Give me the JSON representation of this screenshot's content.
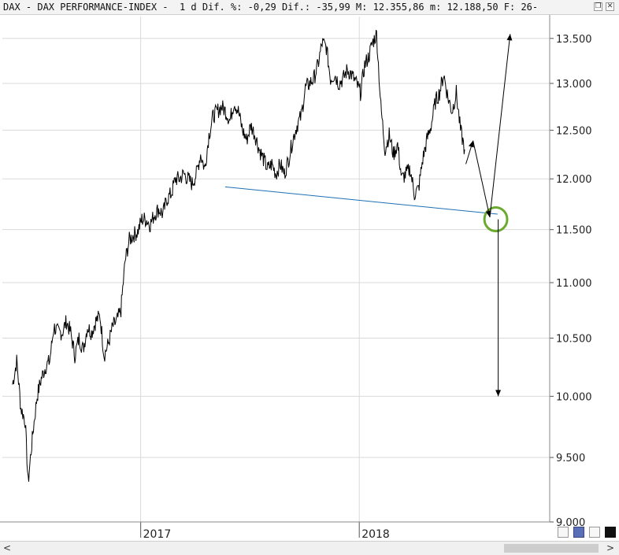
{
  "window": {
    "title": "DAX - DAX PERFORMANCE-INDEX -  1 d Dif. %: -0,29 Dif.: -35,99 M: 12.355,86 m: 12.188,50 F: 26-",
    "restore_glyph": "❐",
    "close_glyph": "✕"
  },
  "scrollbar": {
    "left_glyph": "<",
    "right_glyph": ">"
  },
  "toolbar_icons": [
    "refresh-icon",
    "save-icon",
    "pin-icon",
    "color-swatch-icon"
  ],
  "colors": {
    "price": "#000000",
    "trendline": "#1f6fb2",
    "ellipse": "#6aaa2e",
    "grid": "#d9d9d9"
  },
  "chart_data": {
    "type": "line",
    "series": [
      {
        "x": [
          "2016-06-01",
          "2016-06-08",
          "2016-06-15",
          "2016-06-22",
          "2016-06-27",
          "2016-07-05",
          "2016-07-12",
          "2016-07-19",
          "2016-07-26",
          "2016-08-02",
          "2016-08-09",
          "2016-08-16",
          "2016-08-23",
          "2016-08-30",
          "2016-09-06",
          "2016-09-13",
          "2016-09-20",
          "2016-09-27",
          "2016-10-04",
          "2016-10-11",
          "2016-10-18",
          "2016-10-25",
          "2016-11-01",
          "2016-11-08",
          "2016-11-15",
          "2016-11-22",
          "2016-11-29",
          "2016-12-06",
          "2016-12-13",
          "2016-12-20",
          "2016-12-27",
          "2017-01-03",
          "2017-01-10",
          "2017-01-17",
          "2017-01-24",
          "2017-01-31",
          "2017-02-07",
          "2017-02-14",
          "2017-02-21",
          "2017-02-28",
          "2017-03-07",
          "2017-03-14",
          "2017-03-21",
          "2017-03-28",
          "2017-04-04",
          "2017-04-11",
          "2017-04-18",
          "2017-04-25",
          "2017-05-02",
          "2017-05-09",
          "2017-05-16",
          "2017-05-23",
          "2017-05-30",
          "2017-06-06",
          "2017-06-13",
          "2017-06-20",
          "2017-06-27",
          "2017-07-04",
          "2017-07-11",
          "2017-07-18",
          "2017-07-25",
          "2017-08-01",
          "2017-08-08",
          "2017-08-15",
          "2017-08-22",
          "2017-08-29",
          "2017-09-05",
          "2017-09-12",
          "2017-09-19",
          "2017-09-26",
          "2017-10-03",
          "2017-10-10",
          "2017-10-17",
          "2017-10-24",
          "2017-10-31",
          "2017-11-07",
          "2017-11-14",
          "2017-11-21",
          "2017-11-28",
          "2017-12-05",
          "2017-12-12",
          "2017-12-19",
          "2017-12-27",
          "2018-01-03",
          "2018-01-10",
          "2018-01-17",
          "2018-01-23",
          "2018-01-30",
          "2018-02-06",
          "2018-02-13",
          "2018-02-20",
          "2018-02-27",
          "2018-03-06",
          "2018-03-13",
          "2018-03-20",
          "2018-03-27",
          "2018-04-03",
          "2018-04-10",
          "2018-04-17",
          "2018-04-24",
          "2018-05-01",
          "2018-05-08",
          "2018-05-15",
          "2018-05-22",
          "2018-05-29",
          "2018-06-05",
          "2018-06-12",
          "2018-06-19",
          "2018-06-26"
        ],
        "values": [
          10100,
          10300,
          9900,
          9800,
          9300,
          9700,
          10000,
          10150,
          10250,
          10300,
          10600,
          10550,
          10550,
          10650,
          10550,
          10350,
          10500,
          10400,
          10600,
          10550,
          10650,
          10700,
          10350,
          10450,
          10600,
          10650,
          10750,
          11200,
          11400,
          11450,
          11480,
          11600,
          11600,
          11550,
          11650,
          11700,
          11650,
          11800,
          11850,
          12000,
          12000,
          12050,
          12000,
          11950,
          12050,
          12250,
          12100,
          12450,
          12650,
          12700,
          12750,
          12700,
          12600,
          12800,
          12700,
          12500,
          12400,
          12550,
          12450,
          12300,
          12200,
          12100,
          12150,
          12050,
          12150,
          12050,
          12200,
          12400,
          12550,
          12650,
          12950,
          13000,
          13050,
          13200,
          13450,
          13400,
          13050,
          13100,
          13000,
          13050,
          13150,
          13100,
          13000,
          12900,
          13200,
          13300,
          13450,
          13550,
          12750,
          12300,
          12450,
          12250,
          12350,
          12000,
          12050,
          12100,
          11850,
          11900,
          12200,
          12400,
          12550,
          12800,
          12900,
          13100,
          12850,
          12700,
          12900,
          12500,
          12300
        ],
        "name": ""
      }
    ],
    "annotations": {
      "trendline": {
        "from": [
          "2017-05-22",
          11920
        ],
        "to": [
          "2018-08-20",
          11650
        ]
      },
      "projection_arrows": [
        {
          "from": [
            "2018-06-28",
            12150
          ],
          "to": [
            "2018-07-10",
            12390
          ]
        },
        {
          "from": [
            "2018-07-10",
            12390
          ],
          "to": [
            "2018-08-07",
            11620
          ]
        },
        {
          "from": [
            "2018-08-07",
            11620
          ],
          "to": [
            "2018-09-10",
            13550
          ]
        },
        {
          "from": [
            "2018-08-21",
            11600
          ],
          "to": [
            "2018-08-21",
            10000
          ]
        }
      ],
      "ellipse": {
        "center": [
          "2018-08-17",
          11600
        ],
        "width_days": 38,
        "height_units": 230
      }
    },
    "y_ticks": [
      "9.000",
      "9.500",
      "10.000",
      "10.500",
      "11.000",
      "11.500",
      "12.000",
      "12.500",
      "13.000",
      "13.500"
    ],
    "y_tick_values": [
      9000,
      9500,
      10000,
      10500,
      11000,
      11500,
      12000,
      12500,
      13000,
      13500
    ],
    "x_ticks": [
      "2017",
      "2018"
    ],
    "x_tick_dates": [
      "2017-01-01",
      "2018-01-01"
    ],
    "ylim": [
      9000,
      13750
    ],
    "ylog": true,
    "xlim": [
      "2016-05-15",
      "2018-11-15"
    ],
    "grid": true
  }
}
